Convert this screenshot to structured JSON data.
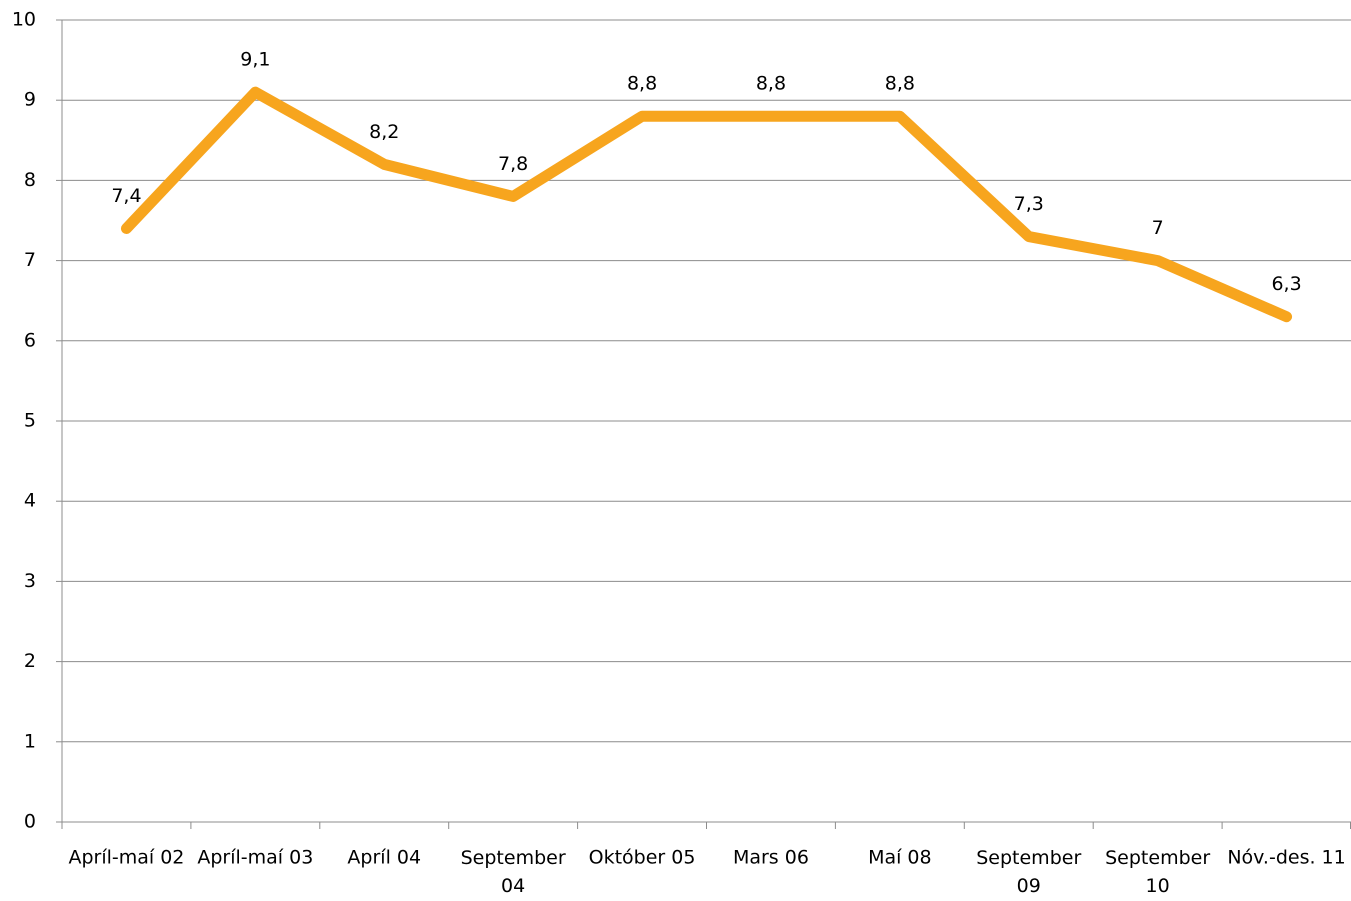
{
  "chart_data": {
    "type": "line",
    "categories": [
      "Apríl-maí 02",
      "Apríl-maí 03",
      "Apríl 04",
      "September 04",
      "Október 05",
      "Mars 06",
      "Maí 08",
      "September 09",
      "September 10",
      "Nóv.-des. 11"
    ],
    "series": [
      {
        "color": "#f7a51e",
        "values": [
          7.4,
          9.1,
          8.2,
          7.8,
          8.8,
          8.8,
          8.8,
          7.3,
          7,
          6.3
        ],
        "value_labels": [
          "7,4",
          "9,1",
          "8,2",
          "7,8",
          "8,8",
          "8,8",
          "8,8",
          "7,3",
          "7",
          "6,3"
        ]
      }
    ],
    "ylim": [
      0,
      10
    ],
    "yticks": [
      0,
      1,
      2,
      3,
      4,
      5,
      6,
      7,
      8,
      9,
      10
    ],
    "grid": true
  }
}
